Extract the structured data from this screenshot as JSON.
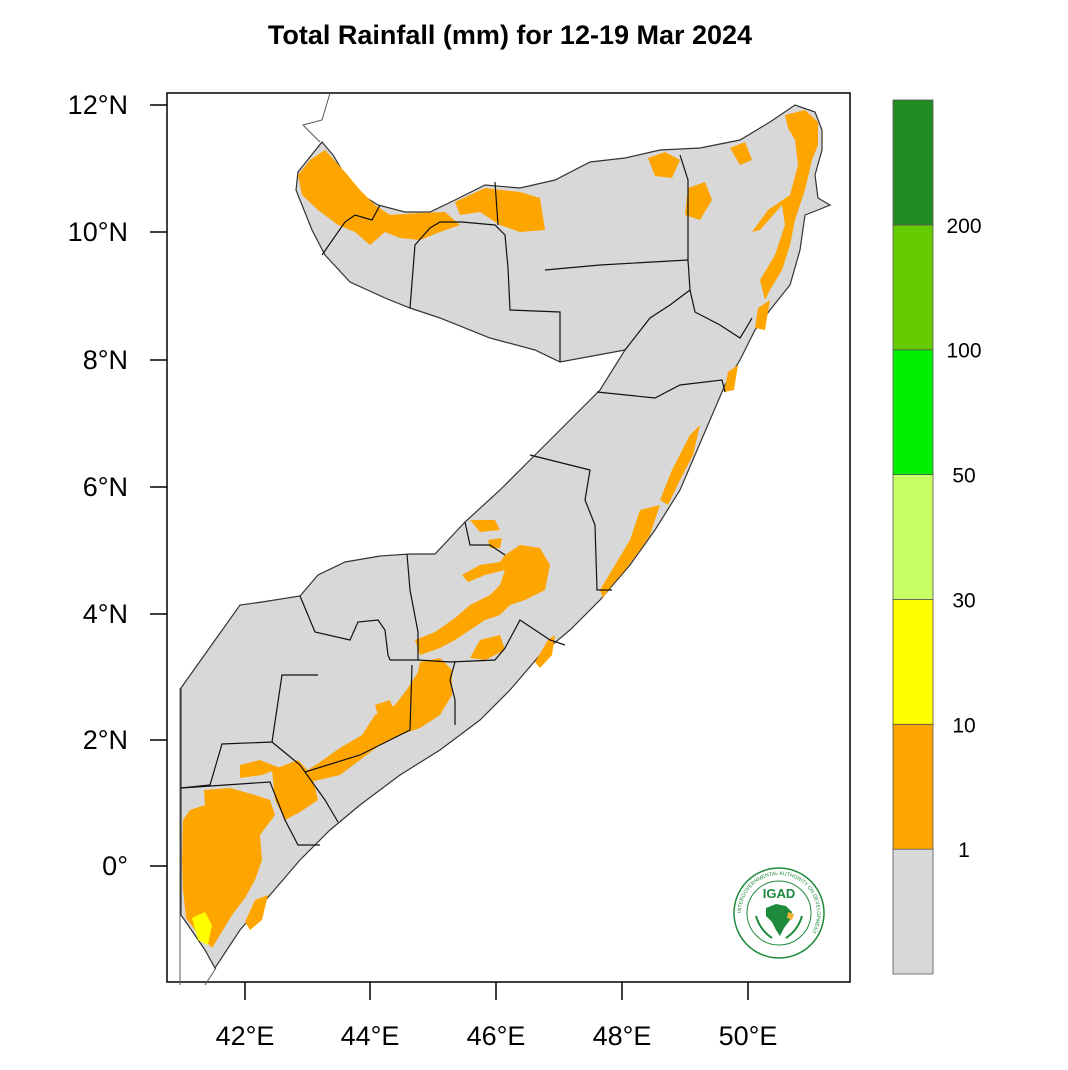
{
  "title": "Total Rainfall (mm) for 12-19 Mar 2024",
  "map": {
    "lon_range": [
      40.8,
      51.6
    ],
    "lat_range": [
      -1.9,
      12.2
    ],
    "lat_ticks": [
      {
        "value": 12,
        "label": "12°N"
      },
      {
        "value": 10,
        "label": "10°N"
      },
      {
        "value": 8,
        "label": "8°N"
      },
      {
        "value": 6,
        "label": "6°N"
      },
      {
        "value": 4,
        "label": "4°N"
      },
      {
        "value": 2,
        "label": "2°N"
      },
      {
        "value": 0,
        "label": "0°"
      }
    ],
    "lon_ticks": [
      {
        "value": 42,
        "label": "42°E"
      },
      {
        "value": 44,
        "label": "44°E"
      },
      {
        "value": 46,
        "label": "46°E"
      },
      {
        "value": 48,
        "label": "48°E"
      },
      {
        "value": 50,
        "label": "50°E"
      }
    ]
  },
  "colorbar": {
    "bins": [
      {
        "color": "#d8d8d8",
        "label": "1"
      },
      {
        "color": "#ffa500",
        "label": "10"
      },
      {
        "color": "#ffff00",
        "label": "30"
      },
      {
        "color": "#c8ff64",
        "label": "50"
      },
      {
        "color": "#00ee00",
        "label": "100"
      },
      {
        "color": "#66cc00",
        "label": "200"
      },
      {
        "color": "#228b22",
        "label": ""
      }
    ]
  },
  "colors": {
    "land": "#d8d8d8",
    "rain_1_10": "#ffa500",
    "rain_10_30": "#ffff00",
    "border": "#000000"
  },
  "logo": {
    "text": "IGAD",
    "ring_text": "INTERGOVERNMENTAL AUTHORITY ON DEVELOPMENT",
    "color": "#1e8a3c"
  }
}
